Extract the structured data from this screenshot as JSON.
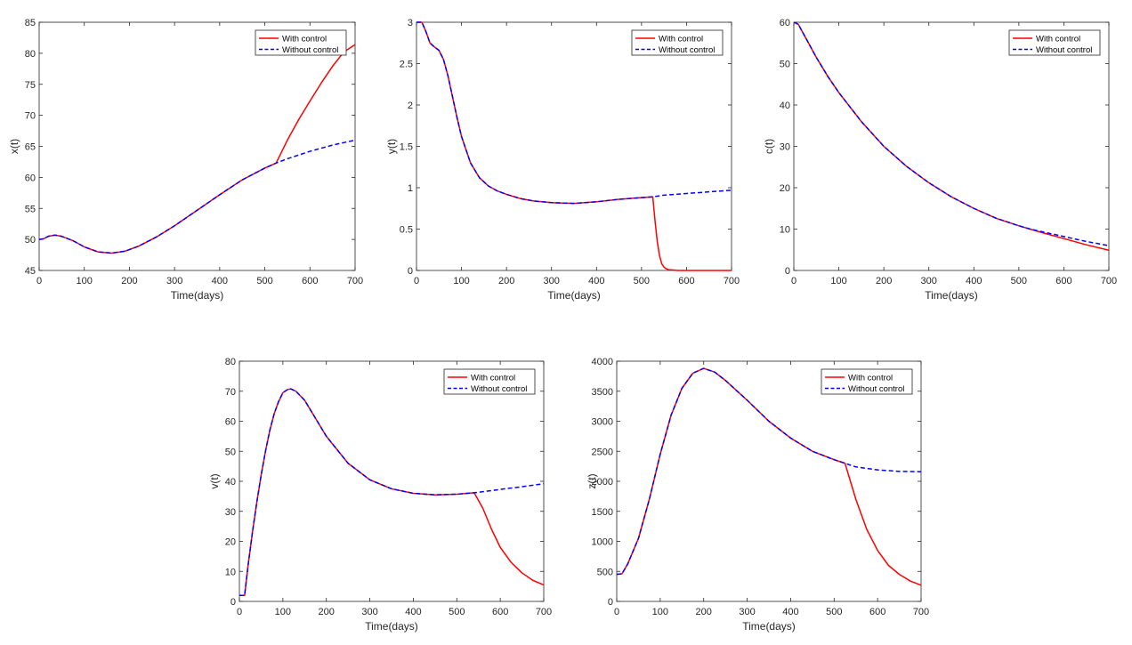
{
  "figure": {
    "legend": {
      "with_control": "With control",
      "without_control": "Without control"
    }
  },
  "colors": {
    "with_control": "#ff0000",
    "without_control": "#0000ff",
    "axes": "#262626"
  },
  "chart_data": [
    {
      "type": "line",
      "id": "x",
      "xlabel": "Time(days)",
      "ylabel": "x(t)",
      "xlim": [
        0,
        700
      ],
      "ylim": [
        45,
        85
      ],
      "xticks": [
        0,
        100,
        200,
        300,
        400,
        500,
        600,
        700
      ],
      "yticks": [
        45,
        50,
        55,
        60,
        65,
        70,
        75,
        80,
        85
      ],
      "legend_position": "top-right",
      "series": [
        {
          "name": "With control",
          "x": [
            0,
            10,
            20,
            35,
            50,
            75,
            100,
            130,
            160,
            190,
            220,
            260,
            300,
            350,
            400,
            450,
            500,
            525,
            550,
            575,
            600,
            625,
            650,
            675,
            700
          ],
          "y": [
            50,
            50.1,
            50.5,
            50.7,
            50.5,
            49.8,
            48.8,
            48.0,
            47.8,
            48.1,
            48.9,
            50.4,
            52.2,
            54.7,
            57.2,
            59.6,
            61.5,
            62.3,
            66.0,
            69.3,
            72.3,
            75.2,
            77.9,
            80.2,
            81.4
          ]
        },
        {
          "name": "Without control",
          "x": [
            0,
            10,
            20,
            35,
            50,
            75,
            100,
            130,
            160,
            190,
            220,
            260,
            300,
            350,
            400,
            450,
            500,
            525,
            550,
            575,
            600,
            625,
            650,
            675,
            700
          ],
          "y": [
            50,
            50.1,
            50.5,
            50.7,
            50.5,
            49.8,
            48.8,
            48.0,
            47.8,
            48.1,
            48.9,
            50.4,
            52.2,
            54.7,
            57.2,
            59.6,
            61.5,
            62.3,
            63.0,
            63.6,
            64.2,
            64.7,
            65.2,
            65.6,
            66.0
          ]
        }
      ]
    },
    {
      "type": "line",
      "id": "y",
      "xlabel": "Time(days)",
      "ylabel": "y(t)",
      "xlim": [
        0,
        700
      ],
      "ylim": [
        0,
        3
      ],
      "xticks": [
        0,
        100,
        200,
        300,
        400,
        500,
        600,
        700
      ],
      "yticks": [
        0,
        0.5,
        1,
        1.5,
        2,
        2.5,
        3
      ],
      "legend_position": "top-right",
      "series": [
        {
          "name": "With control",
          "x": [
            0,
            12,
            20,
            30,
            40,
            50,
            60,
            70,
            80,
            90,
            100,
            120,
            140,
            160,
            180,
            200,
            230,
            260,
            300,
            350,
            400,
            450,
            500,
            525,
            530,
            535,
            540,
            545,
            550,
            555,
            560,
            570,
            580,
            600,
            650,
            700
          ],
          "y": [
            3.0,
            3.0,
            2.9,
            2.75,
            2.7,
            2.66,
            2.55,
            2.35,
            2.1,
            1.85,
            1.62,
            1.3,
            1.12,
            1.02,
            0.96,
            0.92,
            0.87,
            0.84,
            0.82,
            0.81,
            0.83,
            0.86,
            0.88,
            0.89,
            0.6,
            0.35,
            0.18,
            0.08,
            0.04,
            0.02,
            0.01,
            0.005,
            0.0,
            0.0,
            0.0,
            0.0
          ]
        },
        {
          "name": "Without control",
          "x": [
            0,
            12,
            20,
            30,
            40,
            50,
            60,
            70,
            80,
            90,
            100,
            120,
            140,
            160,
            180,
            200,
            230,
            260,
            300,
            350,
            400,
            450,
            500,
            525,
            550,
            600,
            650,
            700
          ],
          "y": [
            3.0,
            3.0,
            2.9,
            2.75,
            2.7,
            2.66,
            2.55,
            2.35,
            2.1,
            1.85,
            1.62,
            1.3,
            1.12,
            1.02,
            0.96,
            0.92,
            0.87,
            0.84,
            0.82,
            0.81,
            0.83,
            0.86,
            0.88,
            0.89,
            0.91,
            0.93,
            0.95,
            0.97
          ]
        }
      ]
    },
    {
      "type": "line",
      "id": "c",
      "xlabel": "Time(days)",
      "ylabel": "c(t)",
      "xlim": [
        0,
        700
      ],
      "ylim": [
        0,
        60
      ],
      "xticks": [
        0,
        100,
        200,
        300,
        400,
        500,
        600,
        700
      ],
      "yticks": [
        0,
        10,
        20,
        30,
        40,
        50,
        60
      ],
      "legend_position": "top-right",
      "series": [
        {
          "name": "With control",
          "x": [
            0,
            10,
            25,
            50,
            75,
            100,
            150,
            200,
            250,
            300,
            350,
            400,
            450,
            500,
            525,
            550,
            600,
            650,
            700
          ],
          "y": [
            60,
            59.5,
            56.5,
            51.5,
            47,
            43,
            36,
            30,
            25.2,
            21.2,
            17.8,
            15,
            12.6,
            10.8,
            10.0,
            9.2,
            7.7,
            6.2,
            4.9
          ]
        },
        {
          "name": "Without control",
          "x": [
            0,
            10,
            25,
            50,
            75,
            100,
            150,
            200,
            250,
            300,
            350,
            400,
            450,
            500,
            525,
            550,
            600,
            650,
            700
          ],
          "y": [
            60,
            59.5,
            56.5,
            51.5,
            47,
            43,
            36,
            30,
            25.2,
            21.2,
            17.8,
            15,
            12.6,
            10.8,
            10.0,
            9.4,
            8.2,
            7.0,
            6.0
          ]
        }
      ]
    },
    {
      "type": "line",
      "id": "v",
      "xlabel": "Time(days)",
      "ylabel": "v(t)",
      "xlim": [
        0,
        700
      ],
      "ylim": [
        0,
        80
      ],
      "xticks": [
        0,
        100,
        200,
        300,
        400,
        500,
        600,
        700
      ],
      "yticks": [
        0,
        10,
        20,
        30,
        40,
        50,
        60,
        70,
        80
      ],
      "legend_position": "top-right",
      "series": [
        {
          "name": "With control",
          "x": [
            0,
            12,
            20,
            30,
            40,
            50,
            60,
            70,
            80,
            90,
            100,
            110,
            118,
            130,
            150,
            175,
            200,
            250,
            300,
            350,
            400,
            450,
            500,
            540,
            560,
            580,
            600,
            625,
            650,
            675,
            700
          ],
          "y": [
            2,
            2,
            12,
            23,
            33,
            42,
            50,
            57,
            62.5,
            66.5,
            69.5,
            70.5,
            70.8,
            70,
            67,
            61,
            55,
            46,
            40.5,
            37.5,
            36,
            35.5,
            35.7,
            36.2,
            31,
            24,
            18,
            13,
            9.5,
            7,
            5.5
          ]
        },
        {
          "name": "Without control",
          "x": [
            0,
            12,
            20,
            30,
            40,
            50,
            60,
            70,
            80,
            90,
            100,
            110,
            118,
            130,
            150,
            175,
            200,
            250,
            300,
            350,
            400,
            450,
            500,
            540,
            575,
            600,
            650,
            700
          ],
          "y": [
            2,
            2,
            12,
            23,
            33,
            42,
            50,
            57,
            62.5,
            66.5,
            69.5,
            70.5,
            70.8,
            70,
            67,
            61,
            55,
            46,
            40.5,
            37.5,
            36,
            35.5,
            35.7,
            36.2,
            36.8,
            37.3,
            38.2,
            39.2
          ]
        }
      ]
    },
    {
      "type": "line",
      "id": "z",
      "xlabel": "Time(days)",
      "ylabel": "z(t)",
      "xlim": [
        0,
        700
      ],
      "ylim": [
        0,
        4000
      ],
      "xticks": [
        0,
        100,
        200,
        300,
        400,
        500,
        600,
        700
      ],
      "yticks": [
        0,
        500,
        1000,
        1500,
        2000,
        2500,
        3000,
        3500,
        4000
      ],
      "legend_position": "top-right",
      "series": [
        {
          "name": "With control",
          "x": [
            0,
            12,
            25,
            50,
            75,
            100,
            125,
            150,
            175,
            200,
            225,
            250,
            300,
            350,
            400,
            450,
            500,
            525,
            550,
            575,
            600,
            625,
            650,
            675,
            700
          ],
          "y": [
            450,
            460,
            620,
            1050,
            1700,
            2450,
            3100,
            3550,
            3800,
            3880,
            3820,
            3680,
            3350,
            3000,
            2720,
            2500,
            2360,
            2300,
            1700,
            1200,
            850,
            600,
            450,
            340,
            270
          ]
        },
        {
          "name": "Without control",
          "x": [
            0,
            12,
            25,
            50,
            75,
            100,
            125,
            150,
            175,
            200,
            225,
            250,
            300,
            350,
            400,
            450,
            500,
            525,
            550,
            600,
            650,
            700
          ],
          "y": [
            450,
            460,
            620,
            1050,
            1700,
            2450,
            3100,
            3550,
            3800,
            3880,
            3820,
            3680,
            3350,
            3000,
            2720,
            2500,
            2360,
            2300,
            2240,
            2190,
            2165,
            2160
          ]
        }
      ]
    }
  ]
}
